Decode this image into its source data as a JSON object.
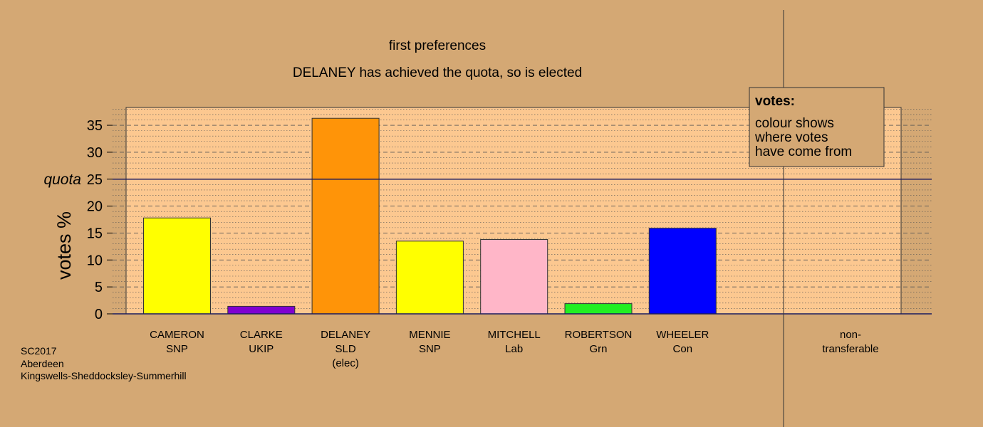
{
  "footer": {
    "line1": "SC2017",
    "line2": "Aberdeen",
    "line3": "Kingswells-Sheddocksley-Summerhill"
  },
  "legend": {
    "title": "votes:",
    "line1": "colour shows",
    "line2": "where votes",
    "line3": "have come from"
  },
  "quota_label": "quota",
  "colors": {
    "background": "#d4a874",
    "plot_area": "#fcc890",
    "quota_line": "#1a1a5e"
  },
  "chart_data": {
    "type": "bar",
    "title": "first preferences",
    "subtitle": "DELANEY has achieved the quota, so is elected",
    "ylabel": "votes %",
    "ylim": [
      0,
      38
    ],
    "yticks": [
      0,
      5,
      10,
      15,
      20,
      25,
      30,
      35
    ],
    "quota": 25,
    "grid": true,
    "legend_position": "top-right",
    "categories": [
      {
        "name": "CAMERON",
        "party": "SNP",
        "note": "",
        "value": 17.8,
        "color": "#ffff00"
      },
      {
        "name": "CLARKE",
        "party": "UKIP",
        "note": "",
        "value": 1.4,
        "color": "#8000d0"
      },
      {
        "name": "DELANEY",
        "party": "SLD",
        "note": "(elec)",
        "value": 36.3,
        "color": "#ff9408"
      },
      {
        "name": "MENNIE",
        "party": "SNP",
        "note": "",
        "value": 13.5,
        "color": "#ffff00"
      },
      {
        "name": "MITCHELL",
        "party": "Lab",
        "note": "",
        "value": 13.8,
        "color": "#ffb6c8"
      },
      {
        "name": "ROBERTSON",
        "party": "Grn",
        "note": "",
        "value": 1.9,
        "color": "#22ee22"
      },
      {
        "name": "WHEELER",
        "party": "Con",
        "note": "",
        "value": 15.9,
        "color": "#0000ff"
      }
    ],
    "non_transferable": {
      "label_line1": "non-",
      "label_line2": "transferable",
      "value": 0
    }
  }
}
